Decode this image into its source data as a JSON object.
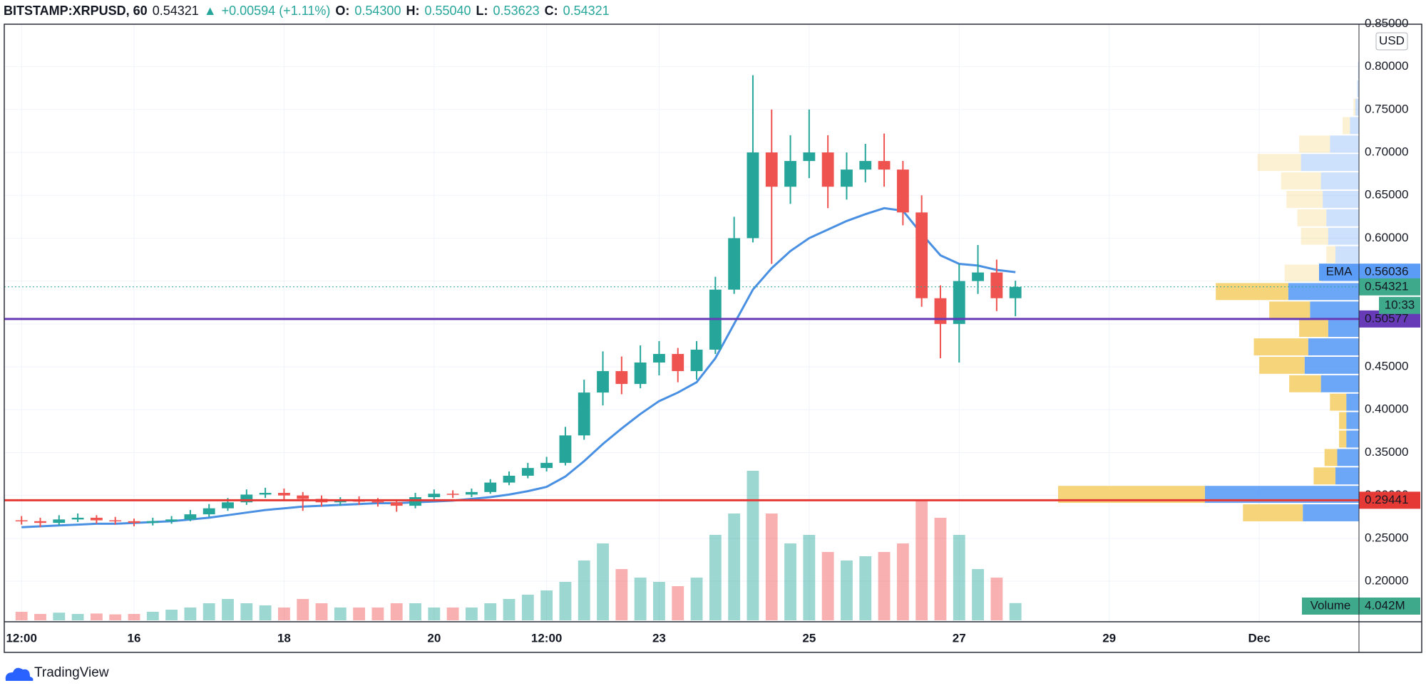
{
  "header": {
    "symbol": "BITSTAMP:XRPUSD, 60",
    "last": "0.54321",
    "change": "+0.00594 (+1.11%)",
    "ohlc_labels": [
      "O:",
      "H:",
      "L:",
      "C:"
    ],
    "ohlc_values": [
      "0.54300",
      "0.55040",
      "0.53623",
      "0.54321"
    ]
  },
  "chart_data": {
    "type": "candlestick",
    "currency": "USD",
    "countdown": "10:33",
    "up_color": "#26a69a",
    "down_color": "#ef5350",
    "xlim": [
      14.27,
      32.33
    ],
    "xticks": [
      {
        "value": 14.5,
        "label": "12:00"
      },
      16,
      18,
      20,
      {
        "value": 21.5,
        "label": "12:00"
      },
      23,
      25,
      27,
      29,
      {
        "value": 31,
        "label": "Dec"
      }
    ],
    "ylim": [
      0.1527,
      0.8495
    ],
    "yticks": [
      {
        "value": 0.2,
        "label": "0.20000"
      },
      {
        "value": 0.25,
        "label": "0.25000"
      },
      {
        "value": 0.3,
        "label": "0.30000"
      },
      {
        "value": 0.35,
        "label": "0.35000"
      },
      {
        "value": 0.4,
        "label": "0.40000"
      },
      {
        "value": 0.45,
        "label": "0.45000"
      },
      {
        "value": 0.5,
        "label": "0.50000"
      },
      {
        "value": 0.55,
        "label": "0.55000"
      },
      {
        "value": 0.6,
        "label": "0.60000"
      },
      {
        "value": 0.65,
        "label": "0.65000"
      },
      {
        "value": 0.7,
        "label": "0.70000"
      },
      {
        "value": 0.75,
        "label": "0.75000"
      },
      {
        "value": 0.8,
        "label": "0.80000"
      },
      {
        "value": 0.85,
        "label": "0.85000"
      }
    ],
    "grid": true,
    "x": [
      14.5,
      14.75,
      15,
      15.25,
      15.5,
      15.75,
      16,
      16.25,
      16.5,
      16.75,
      17,
      17.25,
      17.5,
      17.75,
      18,
      18.25,
      18.5,
      18.75,
      19,
      19.25,
      19.5,
      19.75,
      20,
      20.25,
      20.5,
      20.75,
      21,
      21.25,
      21.5,
      21.75,
      22,
      22.25,
      22.5,
      22.75,
      23,
      23.25,
      23.5,
      23.75,
      24,
      24.25,
      24.5,
      24.75,
      25,
      25.25,
      25.5,
      25.75,
      26,
      26.25,
      26.5,
      26.75,
      27,
      27.25,
      27.5,
      27.75
    ],
    "open": [
      0.271,
      0.27,
      0.268,
      0.272,
      0.274,
      0.271,
      0.27,
      0.268,
      0.27,
      0.272,
      0.278,
      0.285,
      0.292,
      0.301,
      0.303,
      0.3,
      0.296,
      0.292,
      0.294,
      0.293,
      0.292,
      0.288,
      0.298,
      0.302,
      0.301,
      0.304,
      0.315,
      0.323,
      0.332,
      0.338,
      0.37,
      0.42,
      0.445,
      0.43,
      0.455,
      0.465,
      0.445,
      0.47,
      0.54,
      0.6,
      0.7,
      0.66,
      0.69,
      0.7,
      0.66,
      0.68,
      0.69,
      0.68,
      0.63,
      0.53,
      0.5,
      0.55,
      0.56,
      0.53
    ],
    "high": [
      0.276,
      0.274,
      0.277,
      0.279,
      0.277,
      0.275,
      0.273,
      0.274,
      0.276,
      0.283,
      0.29,
      0.297,
      0.307,
      0.309,
      0.308,
      0.304,
      0.3,
      0.298,
      0.299,
      0.297,
      0.295,
      0.303,
      0.307,
      0.306,
      0.308,
      0.319,
      0.328,
      0.338,
      0.345,
      0.38,
      0.435,
      0.468,
      0.462,
      0.475,
      0.48,
      0.472,
      0.48,
      0.555,
      0.625,
      0.79,
      0.75,
      0.72,
      0.75,
      0.72,
      0.7,
      0.71,
      0.722,
      0.69,
      0.65,
      0.545,
      0.57,
      0.592,
      0.575,
      0.5504
    ],
    "low": [
      0.266,
      0.263,
      0.265,
      0.269,
      0.267,
      0.266,
      0.264,
      0.265,
      0.267,
      0.27,
      0.275,
      0.282,
      0.289,
      0.297,
      0.295,
      0.282,
      0.287,
      0.288,
      0.289,
      0.287,
      0.281,
      0.285,
      0.295,
      0.297,
      0.298,
      0.302,
      0.312,
      0.32,
      0.328,
      0.335,
      0.365,
      0.405,
      0.418,
      0.425,
      0.44,
      0.432,
      0.435,
      0.465,
      0.535,
      0.595,
      0.57,
      0.64,
      0.67,
      0.635,
      0.645,
      0.665,
      0.66,
      0.615,
      0.52,
      0.46,
      0.455,
      0.535,
      0.515,
      0.509
    ],
    "close": [
      0.27,
      0.268,
      0.272,
      0.274,
      0.271,
      0.27,
      0.268,
      0.27,
      0.272,
      0.278,
      0.285,
      0.292,
      0.301,
      0.303,
      0.3,
      0.296,
      0.292,
      0.294,
      0.293,
      0.292,
      0.288,
      0.298,
      0.302,
      0.301,
      0.304,
      0.315,
      0.323,
      0.332,
      0.338,
      0.37,
      0.42,
      0.445,
      0.43,
      0.455,
      0.465,
      0.445,
      0.47,
      0.54,
      0.6,
      0.7,
      0.66,
      0.69,
      0.7,
      0.66,
      0.68,
      0.69,
      0.68,
      0.63,
      0.53,
      0.5,
      0.55,
      0.56,
      0.53,
      0.54321
    ],
    "volume": {
      "name": "Volume",
      "values": [
        2,
        1.5,
        1.8,
        1.5,
        1.6,
        1.4,
        1.5,
        2,
        2.5,
        3,
        4,
        5,
        4,
        3.5,
        3,
        5,
        4,
        3,
        3,
        3,
        4,
        4,
        3,
        3,
        3,
        4,
        5,
        6,
        7,
        9,
        14,
        18,
        12,
        10,
        9,
        8,
        10,
        20,
        25,
        35,
        25,
        18,
        20,
        16,
        14,
        15,
        16,
        18,
        28,
        24,
        20,
        12,
        10,
        4.042
      ],
      "last_label": "4.042M"
    },
    "ema": {
      "name": "EMA",
      "color": "#4a90e2",
      "values": [
        0.263,
        0.264,
        0.265,
        0.266,
        0.267,
        0.267,
        0.268,
        0.269,
        0.27,
        0.272,
        0.274,
        0.277,
        0.28,
        0.283,
        0.285,
        0.287,
        0.288,
        0.289,
        0.29,
        0.291,
        0.291,
        0.292,
        0.293,
        0.294,
        0.296,
        0.298,
        0.301,
        0.305,
        0.31,
        0.322,
        0.34,
        0.36,
        0.378,
        0.395,
        0.41,
        0.42,
        0.432,
        0.46,
        0.5,
        0.54,
        0.565,
        0.585,
        0.6,
        0.61,
        0.62,
        0.628,
        0.635,
        0.632,
        0.605,
        0.58,
        0.57,
        0.568,
        0.563,
        0.56036
      ]
    },
    "hlines": [
      {
        "value": 0.50577,
        "color": "#673ab7"
      },
      {
        "value": 0.29441,
        "color": "#e53935"
      }
    ],
    "volume_profile": {
      "up_color": "#5b9cf6",
      "down_color": "#f5cf6b",
      "bins": [
        0.269,
        0.2905,
        0.312,
        0.3335,
        0.355,
        0.3765,
        0.398,
        0.4195,
        0.441,
        0.4625,
        0.484,
        0.5055,
        0.527,
        0.5485,
        0.57,
        0.5915,
        0.613,
        0.6345,
        0.656,
        0.6775,
        0.699,
        0.7205,
        0.742,
        0.7635,
        0.785,
        0.8065
      ],
      "up": [
        62,
        170,
        26,
        24,
        14,
        14,
        14,
        42,
        60,
        56,
        34,
        54,
        78,
        42,
        26,
        34,
        36,
        40,
        42,
        64,
        32,
        10,
        4,
        2,
        1
      ],
      "down": [
        66,
        162,
        24,
        14,
        8,
        8,
        18,
        35,
        50,
        60,
        32,
        45,
        80,
        40,
        10,
        30,
        32,
        40,
        44,
        48,
        34,
        8,
        2,
        0,
        0
      ]
    }
  },
  "footer": {
    "brand": "TradingView"
  }
}
